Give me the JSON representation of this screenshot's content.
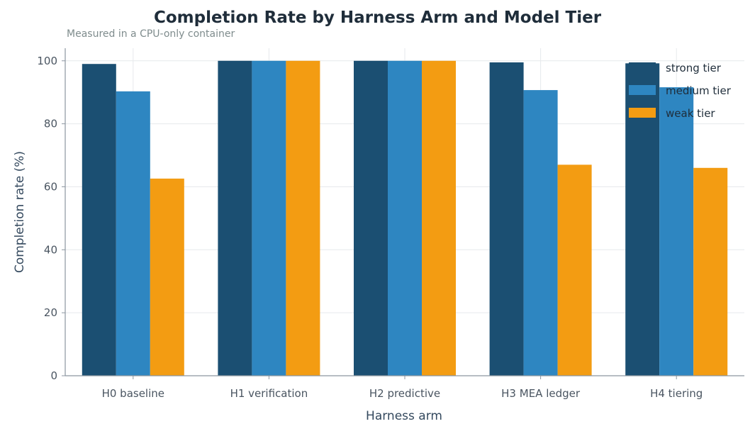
{
  "title": "Completion Rate by Harness Arm and Model Tier",
  "subtitle": "Measured in a CPU-only container",
  "chart_data": {
    "type": "bar",
    "title": "Completion Rate by Harness Arm and Model Tier",
    "subtitle": "Measured in a CPU-only container",
    "xlabel": "Harness arm",
    "ylabel": "Completion rate (%)",
    "categories": [
      "H0 baseline",
      "H1 verification",
      "H2 predictive",
      "H3 MEA ledger",
      "H4 tiering"
    ],
    "series": [
      {
        "name": "strong tier",
        "color": "#1b4f72",
        "values": [
          99,
          100,
          100,
          99.5,
          99.2
        ]
      },
      {
        "name": "medium tier",
        "color": "#2e86c1",
        "values": [
          90.3,
          100,
          100,
          90.7,
          91.6
        ]
      },
      {
        "name": "weak tier",
        "color": "#f39c12",
        "values": [
          62.6,
          100,
          100,
          67,
          66
        ]
      }
    ],
    "ylim": [
      0,
      104
    ],
    "yticks": [
      0,
      20,
      40,
      60,
      80,
      100
    ],
    "grid": true,
    "legend_position": "top-right"
  }
}
